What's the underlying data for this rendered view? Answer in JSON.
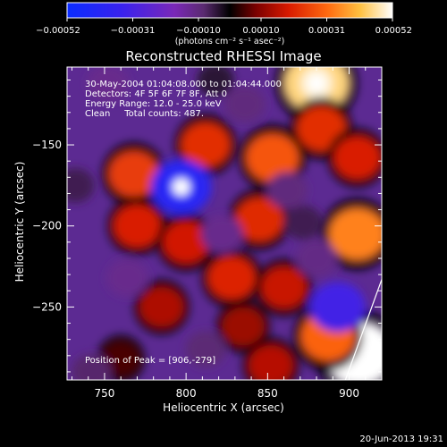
{
  "chart_data": {
    "type": "heatmap",
    "title": "Reconstructed RHESSI Image",
    "xlabel": "Heliocentric X (arcsec)",
    "ylabel": "Heliocentric Y (arcsec)",
    "xlim": [
      727,
      920
    ],
    "ylim": [
      -295,
      -102
    ],
    "xticks": [
      750,
      800,
      850,
      900
    ],
    "yticks": [
      -150,
      -200,
      -250
    ],
    "colorbar": {
      "min": -0.00052,
      "max": 0.00052,
      "ticks": [
        "-0.00052",
        "-0.00031",
        "-0.00010",
        "0.00010",
        "0.00031",
        "0.00052"
      ],
      "unit_label": "(photons cm⁻² s⁻¹ asec⁻²)"
    },
    "annotation": {
      "lines": [
        "30-May-2004 01:04:08.000 to 01:04:44.000",
        "Detectors: 4F 5F 6F 7F 8F, Att 0",
        "Energy Range: 12.0 - 25.0 keV",
        "Clean     Total counts: 487."
      ],
      "peak_label": "Position of Peak = [906,-279]"
    },
    "sources": [
      {
        "x": 906,
        "y": -279,
        "value": 0.00052
      },
      {
        "x": 880,
        "y": -112,
        "value": 0.00045
      },
      {
        "x": 905,
        "y": -205,
        "value": 0.00034
      },
      {
        "x": 887,
        "y": -268,
        "value": 0.0003
      },
      {
        "x": 853,
        "y": -158,
        "value": 0.00028
      },
      {
        "x": 768,
        "y": -168,
        "value": 0.00024
      },
      {
        "x": 812,
        "y": -150,
        "value": 0.00022
      },
      {
        "x": 883,
        "y": -140,
        "value": 0.00022
      },
      {
        "x": 845,
        "y": -196,
        "value": 0.00021
      },
      {
        "x": 828,
        "y": -232,
        "value": 0.0002
      },
      {
        "x": 905,
        "y": -158,
        "value": 0.00019
      },
      {
        "x": 770,
        "y": -200,
        "value": 0.00019
      },
      {
        "x": 800,
        "y": -210,
        "value": 0.00018
      },
      {
        "x": 860,
        "y": -238,
        "value": 0.00017
      },
      {
        "x": 785,
        "y": -250,
        "value": 0.00014
      },
      {
        "x": 835,
        "y": -262,
        "value": 0.00012
      },
      {
        "x": 852,
        "y": -286,
        "value": 0.00015
      },
      {
        "x": 760,
        "y": -282,
        "value": 5e-05
      },
      {
        "x": 797,
        "y": -176,
        "value": -0.0004
      },
      {
        "x": 893,
        "y": -250,
        "value": -0.00032
      },
      {
        "x": 752,
        "y": -112,
        "value": -0.00012
      },
      {
        "x": 822,
        "y": -205,
        "value": -0.00012
      },
      {
        "x": 880,
        "y": -220,
        "value": -0.00011
      },
      {
        "x": 836,
        "y": -125,
        "value": -0.0001
      },
      {
        "x": 862,
        "y": -178,
        "value": -0.0001
      },
      {
        "x": 764,
        "y": -232,
        "value": -0.00012
      },
      {
        "x": 742,
        "y": -290,
        "value": -8e-05
      },
      {
        "x": 812,
        "y": -276,
        "value": -9e-05
      },
      {
        "x": 732,
        "y": -175,
        "value": -6e-05
      },
      {
        "x": 872,
        "y": -198,
        "value": -6e-05
      },
      {
        "x": 818,
        "y": -110,
        "value": -4e-05
      }
    ],
    "limb_line": {
      "x1": 920,
      "y1": -233,
      "x2": 897,
      "y2": -297
    },
    "grid": false
  },
  "footer_timestamp": "20-Jun-2013 19:31"
}
